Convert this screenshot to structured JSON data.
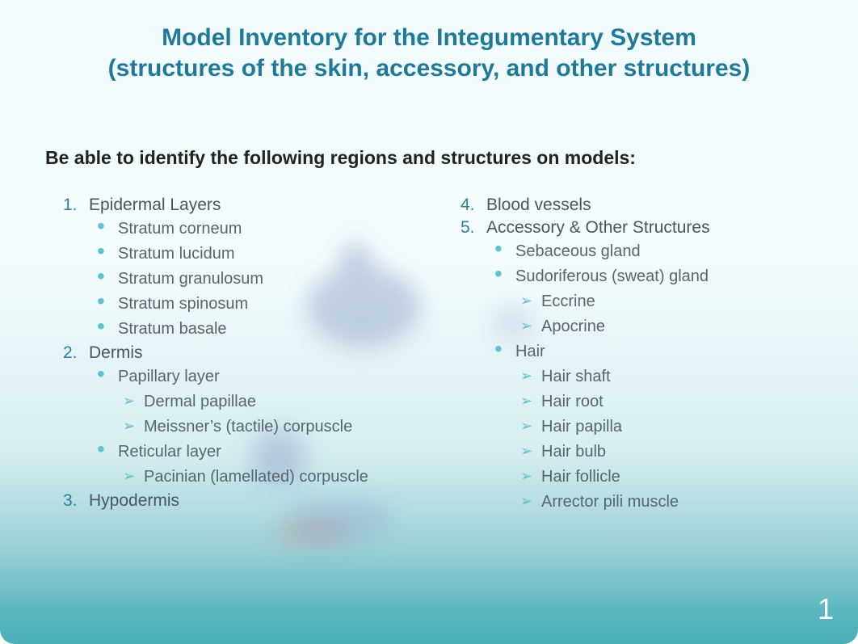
{
  "slide": {
    "title_line1": "Model Inventory for the Integumentary System",
    "title_line2": "(structures of the skin, accessory, and other structures)",
    "subtitle": "Be able to identify the following regions and structures on models:",
    "page_number": "1",
    "colors": {
      "title_color": "#1f7a99",
      "number_color": "#2a7f9e",
      "text_color": "#4a5560",
      "bullet_color": "#5fc2d1",
      "arrow_color": "#5dbfcf",
      "page_number_color": "#ffffff",
      "bg_top": "#f2fbfd",
      "bg_bottom": "#4aaeb8"
    },
    "typography": {
      "title_fontsize": 30,
      "subtitle_fontsize": 23,
      "number_fontsize": 21,
      "bullet_fontsize": 20,
      "page_number_fontsize": 36
    },
    "left_column": [
      {
        "n": "1.",
        "label": "Epidermal Layers",
        "children": [
          {
            "type": "disc",
            "label": "Stratum corneum"
          },
          {
            "type": "disc",
            "label": "Stratum lucidum"
          },
          {
            "type": "disc",
            "label": "Stratum granulosum"
          },
          {
            "type": "disc",
            "label": "Stratum spinosum"
          },
          {
            "type": "disc",
            "label": "Stratum basale"
          }
        ]
      },
      {
        "n": "2.",
        "label": "Dermis",
        "children": [
          {
            "type": "disc",
            "label": "Papillary layer",
            "children": [
              {
                "type": "arrow",
                "label": "Dermal papillae"
              },
              {
                "type": "arrow",
                "label": "Meissner’s (tactile) corpuscle"
              }
            ]
          },
          {
            "type": "disc",
            "label": "Reticular layer",
            "children": [
              {
                "type": "arrow",
                "label": "Pacinian (lamellated) corpuscle"
              }
            ]
          }
        ]
      },
      {
        "n": "3.",
        "label": "Hypodermis",
        "children": []
      }
    ],
    "right_column": [
      {
        "n": "4.",
        "label": "Blood vessels",
        "children": []
      },
      {
        "n": "5.",
        "label": "Accessory & Other Structures",
        "children": [
          {
            "type": "disc",
            "label": "Sebaceous gland"
          },
          {
            "type": "disc",
            "label": "Sudoriferous (sweat) gland",
            "children": [
              {
                "type": "arrow",
                "label": "Eccrine"
              },
              {
                "type": "arrow",
                "label": "Apocrine"
              }
            ]
          },
          {
            "type": "disc",
            "label": "Hair",
            "children": [
              {
                "type": "arrow",
                "label": "Hair shaft"
              },
              {
                "type": "arrow",
                "label": "Hair root"
              },
              {
                "type": "arrow",
                "label": "Hair papilla"
              },
              {
                "type": "arrow",
                "label": "Hair bulb"
              },
              {
                "type": "arrow",
                "label": "Hair follicle"
              },
              {
                "type": "arrow",
                "label": "Arrector pili muscle"
              }
            ]
          }
        ]
      }
    ]
  }
}
